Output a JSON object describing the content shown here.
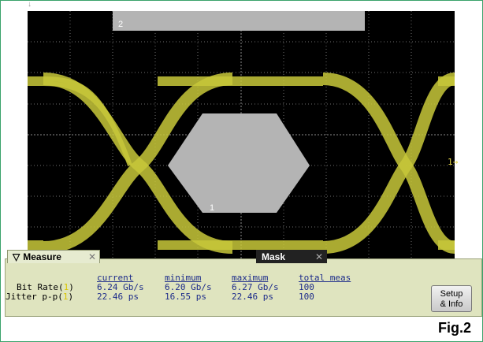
{
  "scope": {
    "mask_region_2_label": "2",
    "mask_region_1_label": "1",
    "channel_marker": "1→"
  },
  "measure_panel": {
    "tab_label": "Measure",
    "mask_tab_label": "Mask",
    "columns": [
      "current",
      "minimum",
      "maximum",
      "total meas"
    ],
    "rows": [
      {
        "label": "Bit Rate(",
        "source": "1",
        "label_end": ")",
        "current": "6.24 Gb/s",
        "minimum": "6.20 Gb/s",
        "maximum": "6.27 Gb/s",
        "total": "100"
      },
      {
        "label": "Jitter p-p(",
        "source": "1",
        "label_end": ")",
        "current": "22.46 ps",
        "minimum": "16.55 ps",
        "maximum": "22.46 ps",
        "total": "100"
      }
    ],
    "setup_button_line1": "Setup",
    "setup_button_line2": "& Info"
  },
  "figure_label": "Fig.2",
  "colors": {
    "eye_trace": "#c8c83a",
    "mask": "#b4b4b4",
    "screen_bg": "#000000",
    "panel_bg": "#dfe4bf"
  }
}
